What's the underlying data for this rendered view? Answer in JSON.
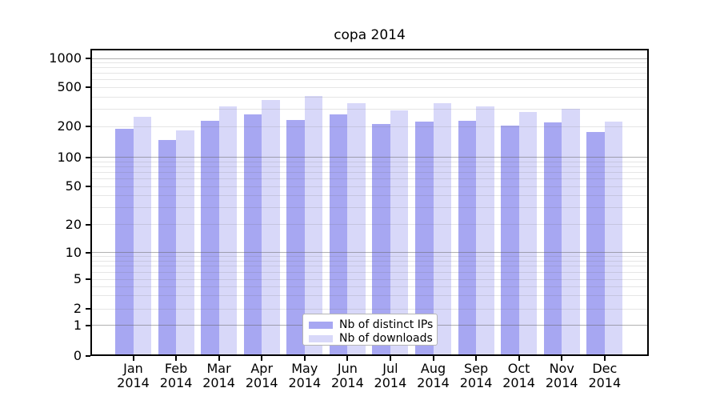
{
  "chart_data": {
    "type": "bar",
    "title": "copa 2014",
    "categories": [
      "Jan 2014",
      "Feb 2014",
      "Mar 2014",
      "Apr 2014",
      "May 2014",
      "Jun 2014",
      "Jul 2014",
      "Aug 2014",
      "Sep 2014",
      "Oct 2014",
      "Nov 2014",
      "Dec 2014"
    ],
    "series": [
      {
        "name": "Nb of distinct IPs",
        "color": "#a7a7f2",
        "values": [
          191,
          148,
          229,
          265,
          234,
          265,
          213,
          226,
          231,
          206,
          220,
          177
        ]
      },
      {
        "name": "Nb of downloads",
        "color": "#d8d8f9",
        "values": [
          253,
          185,
          323,
          373,
          412,
          344,
          291,
          346,
          319,
          282,
          305,
          224
        ]
      }
    ],
    "yticks": [
      0,
      1,
      2,
      5,
      10,
      20,
      50,
      100,
      200,
      500,
      1000
    ],
    "yscale": "log-with-zero",
    "ylim": [
      0,
      1260
    ],
    "xlabel": "",
    "ylabel": "",
    "grid": true,
    "legend_position": "inside-bottom-center"
  }
}
